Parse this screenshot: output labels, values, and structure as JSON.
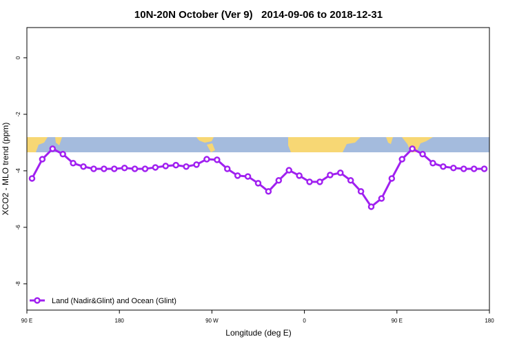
{
  "chart_data": {
    "type": "line",
    "title": "10N-20N October (Ver 9)   2014-09-06 to 2018-12-31",
    "x_label": "Longitude (deg E)",
    "y_label": "XCO2 - MLO trend (ppm)",
    "x": [
      95,
      105,
      115,
      125,
      135,
      145,
      155,
      165,
      175,
      185,
      195,
      205,
      215,
      225,
      235,
      245,
      255,
      265,
      275,
      285,
      295,
      305,
      315,
      325,
      335,
      345,
      355,
      365,
      375,
      385,
      395,
      405,
      415,
      425,
      435,
      445,
      455,
      465,
      475,
      485,
      495,
      505,
      515,
      525,
      535
    ],
    "series": [
      {
        "name": "Land (Nadir&Glint) and Ocean (Glint)",
        "color": "#a020f0",
        "values": [
          -4.27,
          -3.59,
          -3.22,
          -3.41,
          -3.73,
          -3.85,
          -3.93,
          -3.93,
          -3.93,
          -3.9,
          -3.93,
          -3.93,
          -3.88,
          -3.83,
          -3.8,
          -3.85,
          -3.78,
          -3.59,
          -3.61,
          -3.93,
          -4.17,
          -4.2,
          -4.44,
          -4.73,
          -4.34,
          -3.98,
          -4.17,
          -4.39,
          -4.39,
          -4.15,
          -4.07,
          -4.34,
          -4.73,
          -5.27,
          -4.98,
          -4.27,
          -3.59,
          -3.22,
          -3.41,
          -3.73,
          -3.85,
          -3.9,
          -3.93,
          -3.93,
          -3.93
        ]
      }
    ],
    "xlim": [
      90,
      540
    ],
    "xticks": [
      {
        "value": 90,
        "label": "90 E"
      },
      180,
      {
        "value": 270,
        "label": "90 W"
      },
      {
        "value": 360,
        "label": "0"
      },
      {
        "value": 450,
        "label": "90 E"
      },
      {
        "value": 540,
        "label": "180"
      }
    ],
    "ylim": [
      -8.93,
      1.07
    ],
    "yticks": [
      0,
      -2,
      -4,
      -6,
      -8
    ],
    "legend": "bottom-left"
  }
}
